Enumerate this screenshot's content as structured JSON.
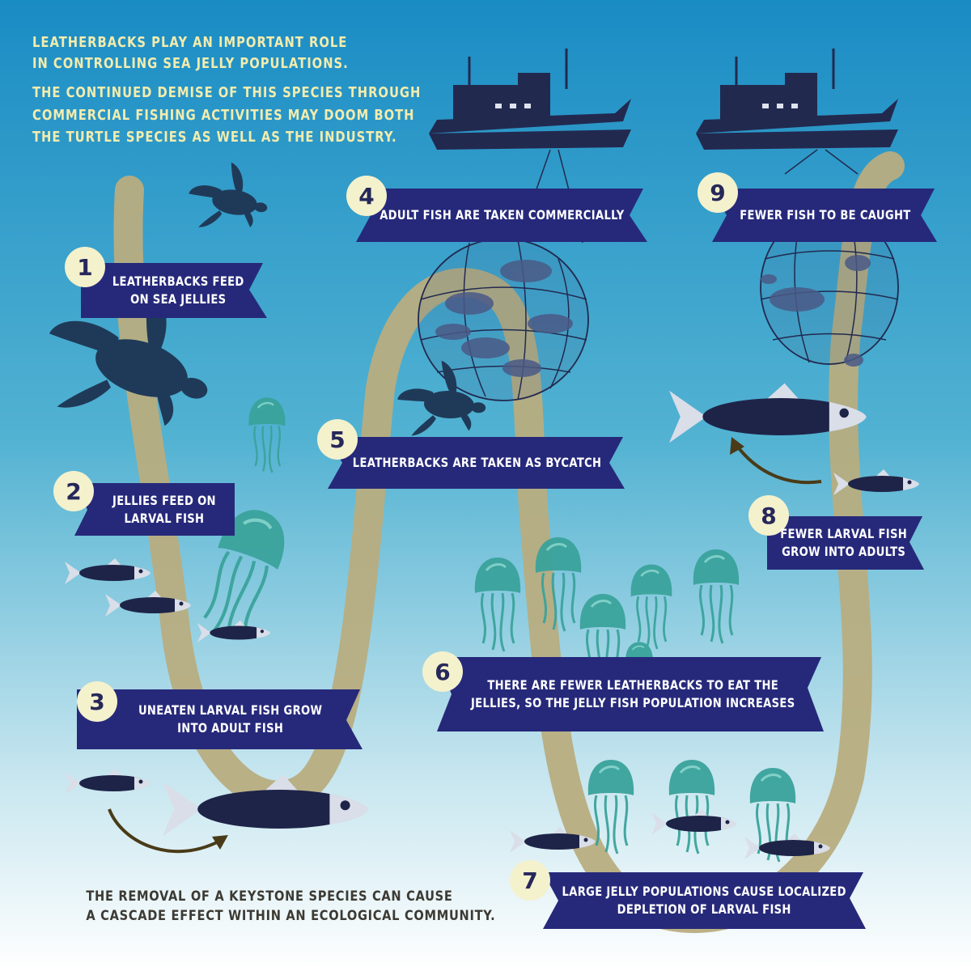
{
  "intro": {
    "line1": "LEATHERBACKS PLAY AN IMPORTANT ROLE",
    "line2": "IN CONTROLLING SEA JELLY POPULATIONS.",
    "line3": "THE CONTINUED DEMISE OF THIS SPECIES THROUGH",
    "line4": "COMMERCIAL FISHING ACTIVITIES MAY DOOM BOTH",
    "line5": "THE TURTLE SPECIES AS WELL AS THE INDUSTRY."
  },
  "steps": [
    {
      "number": "1",
      "lines": [
        "LEATHERBACKS FEED",
        "ON SEA JELLIES"
      ]
    },
    {
      "number": "2",
      "lines": [
        "JELLIES FEED ON",
        "LARVAL FISH"
      ]
    },
    {
      "number": "3",
      "lines": [
        "UNEATEN LARVAL FISH GROW",
        "INTO ADULT FISH"
      ]
    },
    {
      "number": "4",
      "lines": [
        "ADULT FISH ARE TAKEN COMMERCIALLY"
      ]
    },
    {
      "number": "5",
      "lines": [
        "LEATHERBACKS ARE TAKEN AS BYCATCH"
      ]
    },
    {
      "number": "6",
      "lines": [
        "THERE ARE FEWER LEATHERBACKS TO EAT THE",
        "JELLIES, SO THE JELLY FISH POPULATION INCREASES"
      ]
    },
    {
      "number": "7",
      "lines": [
        "LARGE JELLY POPULATIONS CAUSE LOCALIZED",
        "DEPLETION OF LARVAL FISH"
      ]
    },
    {
      "number": "8",
      "lines": [
        "FEWER LARVAL FISH",
        "GROW INTO ADULTS"
      ]
    },
    {
      "number": "9",
      "lines": [
        "FEWER FISH TO BE CAUGHT"
      ]
    }
  ],
  "footer": {
    "line1": "THE REMOVAL OF A KEYSTONE SPECIES CAN CAUSE",
    "line2": "A CASCADE EFFECT WITHIN AN ECOLOGICAL COMMUNITY."
  },
  "colors": {
    "sea_top": "#1d8fc6",
    "sea_bottom": "#ffffff",
    "banner": "#26297a",
    "badge": "#f4f1cd",
    "intro_text": "#f2ecad",
    "path": "#b8ad7f",
    "silhouette": "#22294f",
    "jelly": "#3aa39b",
    "fish_body": "#1e2448"
  }
}
